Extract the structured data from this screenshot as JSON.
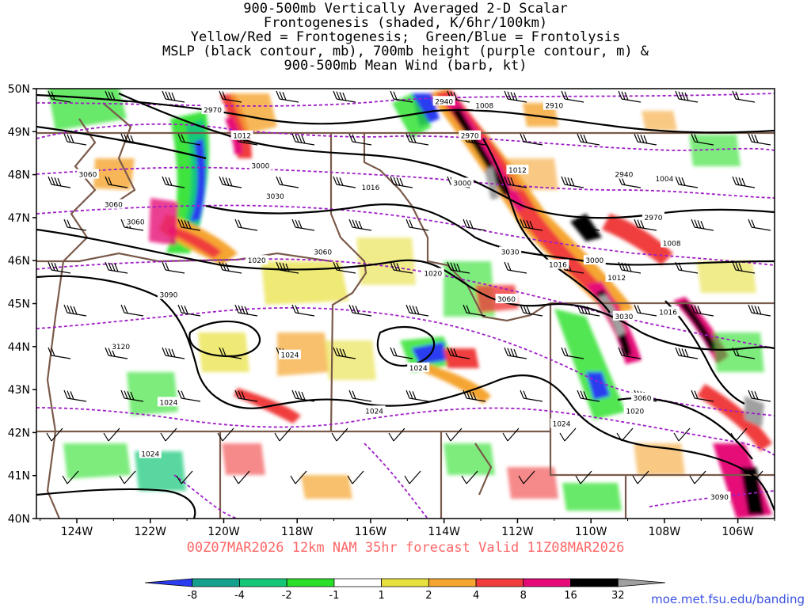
{
  "title_lines": [
    "900-500mb Vertically Averaged 2-D Scalar",
    "Frontogenesis (shaded, K/6hr/100km)",
    "Yellow/Red = Frontogenesis;  Green/Blue = Frontolysis",
    "MSLP (black contour, mb), 700mb height (purple contour, m) &",
    "900-500mb Mean Wind (barb, kt)"
  ],
  "lat_labels": [
    "50N",
    "49N",
    "48N",
    "47N",
    "46N",
    "45N",
    "44N",
    "43N",
    "42N",
    "41N",
    "40N"
  ],
  "lon_labels": [
    "124W",
    "122W",
    "120W",
    "118W",
    "116W",
    "114W",
    "112W",
    "110W",
    "108W",
    "106W"
  ],
  "valid_line": "00Z07MAR2026 12km NAM 35hr forecast Valid 11Z08MAR2026",
  "credit": "moe.met.fsu.edu/banding",
  "colorbar": {
    "labels": [
      "-8",
      "-4",
      "-2",
      "-1",
      "1",
      "2",
      "4",
      "8",
      "16",
      "32"
    ],
    "colors": [
      "#2a3cf0",
      "#14a08c",
      "#14c878",
      "#28e028",
      "#ffffff",
      "#e8e03c",
      "#f5a530",
      "#f03c3c",
      "#e60a78",
      "#000000",
      "#a0a0a0"
    ]
  },
  "mslp_labels": [
    {
      "text": "1008",
      "lon": -112.9,
      "lat": 49.6
    },
    {
      "text": "1012",
      "lon": -119.5,
      "lat": 48.9
    },
    {
      "text": "1012",
      "lon": -112.0,
      "lat": 48.1
    },
    {
      "text": "1016",
      "lon": -116.0,
      "lat": 47.7
    },
    {
      "text": "1004",
      "lon": -108.0,
      "lat": 47.9
    },
    {
      "text": "1008",
      "lon": -107.8,
      "lat": 46.4
    },
    {
      "text": "1020",
      "lon": -119.1,
      "lat": 46.0
    },
    {
      "text": "1020",
      "lon": -114.3,
      "lat": 45.7
    },
    {
      "text": "1016",
      "lon": -110.9,
      "lat": 45.9
    },
    {
      "text": "1012",
      "lon": -109.3,
      "lat": 45.6
    },
    {
      "text": "1016",
      "lon": -107.9,
      "lat": 44.8
    },
    {
      "text": "1024",
      "lon": -118.2,
      "lat": 43.8
    },
    {
      "text": "1024",
      "lon": -114.7,
      "lat": 43.5
    },
    {
      "text": "1024",
      "lon": -121.5,
      "lat": 42.7
    },
    {
      "text": "1024",
      "lon": -115.9,
      "lat": 42.5
    },
    {
      "text": "1024",
      "lon": -110.8,
      "lat": 42.2
    },
    {
      "text": "1020",
      "lon": -108.8,
      "lat": 42.5
    },
    {
      "text": "1024",
      "lon": -122.0,
      "lat": 41.5
    }
  ],
  "height_labels": [
    {
      "text": "2970",
      "lon": -120.3,
      "lat": 49.5
    },
    {
      "text": "2940",
      "lon": -114.0,
      "lat": 49.7
    },
    {
      "text": "2910",
      "lon": -111.0,
      "lat": 49.6
    },
    {
      "text": "2970",
      "lon": -113.3,
      "lat": 48.9
    },
    {
      "text": "3000",
      "lon": -119.0,
      "lat": 48.2
    },
    {
      "text": "3060",
      "lon": -123.7,
      "lat": 48.0
    },
    {
      "text": "3000",
      "lon": -113.5,
      "lat": 47.8
    },
    {
      "text": "2940",
      "lon": -109.1,
      "lat": 48.0
    },
    {
      "text": "3030",
      "lon": -118.6,
      "lat": 47.5
    },
    {
      "text": "3060",
      "lon": -123.0,
      "lat": 47.3
    },
    {
      "text": "3060",
      "lon": -122.4,
      "lat": 46.9
    },
    {
      "text": "2970",
      "lon": -108.3,
      "lat": 47.0
    },
    {
      "text": "3060",
      "lon": -117.3,
      "lat": 46.2
    },
    {
      "text": "3030",
      "lon": -112.2,
      "lat": 46.2
    },
    {
      "text": "3000",
      "lon": -109.9,
      "lat": 46.0
    },
    {
      "text": "3090",
      "lon": -121.5,
      "lat": 45.2
    },
    {
      "text": "3060",
      "lon": -112.3,
      "lat": 45.1
    },
    {
      "text": "3030",
      "lon": -109.1,
      "lat": 44.7
    },
    {
      "text": "3120",
      "lon": -122.8,
      "lat": 44.0
    },
    {
      "text": "3060",
      "lon": -108.6,
      "lat": 42.8
    },
    {
      "text": "3090",
      "lon": -106.5,
      "lat": 40.5
    }
  ]
}
